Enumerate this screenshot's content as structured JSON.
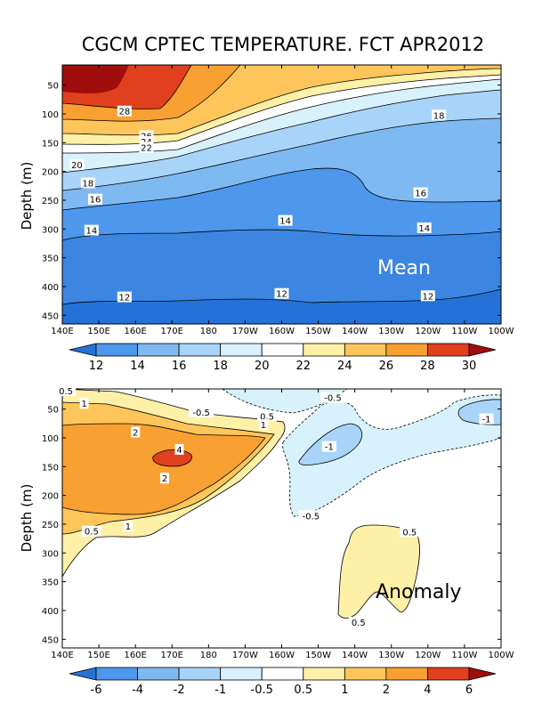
{
  "chart_data": [
    {
      "type": "heatmap",
      "title": "CGCM CPTEC TEMPERATURE. FCT APR2012",
      "panel_label": "Mean",
      "ylabel": "Depth (m)",
      "xlabel": "",
      "x_ticks": [
        "140E",
        "150E",
        "160E",
        "170E",
        "180",
        "170W",
        "160W",
        "150W",
        "140W",
        "130W",
        "120W",
        "110W",
        "100W"
      ],
      "y_ticks": [
        50,
        100,
        150,
        200,
        250,
        300,
        350,
        400,
        450
      ],
      "ylim": [
        465,
        15
      ],
      "contour_labels": [
        {
          "text": "28",
          "lon": 157,
          "depth": 95
        },
        {
          "text": "26",
          "lon": 163,
          "depth": 138
        },
        {
          "text": "24",
          "lon": 163,
          "depth": 148
        },
        {
          "text": "22",
          "lon": 163,
          "depth": 158
        },
        {
          "text": "20",
          "lon": 144,
          "depth": 188
        },
        {
          "text": "18",
          "lon": 147,
          "depth": 220
        },
        {
          "text": "16",
          "lon": 149,
          "depth": 248
        },
        {
          "text": "14",
          "lon": 148,
          "depth": 302
        },
        {
          "text": "12",
          "lon": 157,
          "depth": 418
        },
        {
          "text": "18",
          "lon": -117,
          "depth": 102
        },
        {
          "text": "16",
          "lon": -122,
          "depth": 237
        },
        {
          "text": "14",
          "lon": -159,
          "depth": 285
        },
        {
          "text": "14",
          "lon": -121,
          "depth": 298
        },
        {
          "text": "12",
          "lon": -160,
          "depth": 412
        },
        {
          "text": "12",
          "lon": -120,
          "depth": 416
        }
      ],
      "colorbar": {
        "levels": [
          "12",
          "14",
          "16",
          "18",
          "20",
          "22",
          "24",
          "26",
          "28",
          "30"
        ],
        "colors": [
          "#2472d8",
          "#4d97ec",
          "#7fb9f2",
          "#a9d4f9",
          "#d7f2fc",
          "#ffffff",
          "#fff0a8",
          "#fec65a",
          "#f9a032",
          "#e0401e",
          "#a00d0d"
        ]
      }
    },
    {
      "type": "heatmap",
      "title": "",
      "panel_label": "Anomaly",
      "ylabel": "Depth (m)",
      "xlabel": "",
      "x_ticks": [
        "140E",
        "150E",
        "160E",
        "170E",
        "180",
        "170W",
        "160W",
        "150W",
        "140W",
        "130W",
        "120W",
        "110W",
        "100W"
      ],
      "y_ticks": [
        50,
        100,
        150,
        200,
        250,
        300,
        350,
        400,
        450
      ],
      "ylim": [
        465,
        15
      ],
      "contour_labels": [
        {
          "text": "0.5",
          "lon": 141,
          "depth": 18
        },
        {
          "text": "1",
          "lon": 146,
          "depth": 40
        },
        {
          "text": "2",
          "lon": 160,
          "depth": 90
        },
        {
          "text": "4",
          "lon": 172,
          "depth": 120
        },
        {
          "text": "2",
          "lon": 168,
          "depth": 170
        },
        {
          "text": "1",
          "lon": 158,
          "depth": 253
        },
        {
          "text": "0.5",
          "lon": 148,
          "depth": 262
        },
        {
          "text": "-0.5",
          "lon": 178,
          "depth": 55
        },
        {
          "text": "0.5",
          "lon": -164,
          "depth": 62
        },
        {
          "text": "1",
          "lon": -165,
          "depth": 77
        },
        {
          "text": "-0.5",
          "lon": -146,
          "depth": 30
        },
        {
          "text": "-1",
          "lon": -147,
          "depth": 115
        },
        {
          "text": "-0.5",
          "lon": -152,
          "depth": 235
        },
        {
          "text": "0.5",
          "lon": -125,
          "depth": 263
        },
        {
          "text": "0.5",
          "lon": -139,
          "depth": 420
        },
        {
          "text": "-1",
          "lon": -104,
          "depth": 67
        }
      ],
      "colorbar": {
        "levels": [
          "-6",
          "-4",
          "-2",
          "-1",
          "-0.5",
          "0.5",
          "1",
          "2",
          "4",
          "6"
        ],
        "colors": [
          "#2472d8",
          "#4d97ec",
          "#7fb9f2",
          "#a9d4f9",
          "#d7f2fc",
          "#ffffff",
          "#fff0a8",
          "#fec65a",
          "#f9a032",
          "#e0401e",
          "#a00d0d"
        ]
      }
    }
  ]
}
